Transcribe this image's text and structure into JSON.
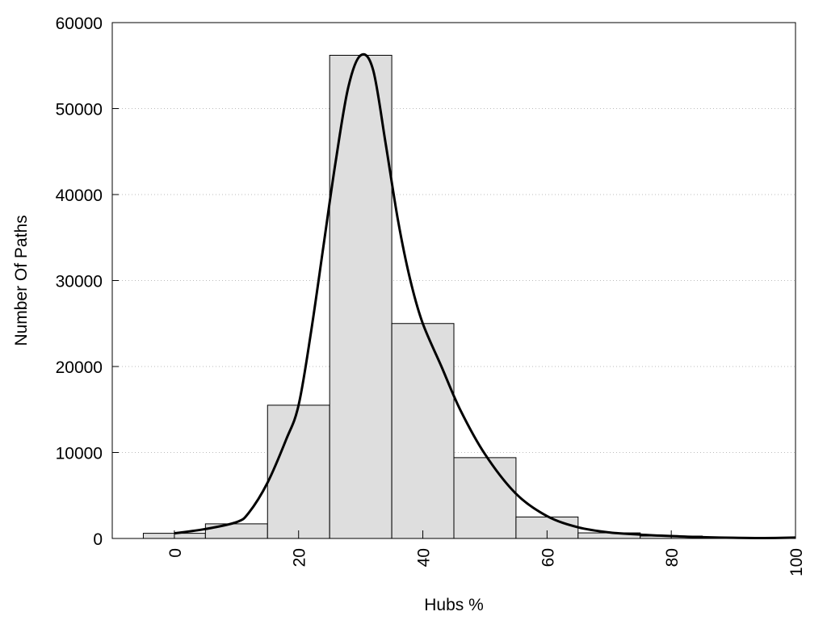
{
  "chart_data": {
    "type": "bar",
    "xlabel": "Hubs %",
    "ylabel": "Number Of Paths",
    "xlim": [
      -10,
      100
    ],
    "ylim": [
      0,
      60000
    ],
    "x_ticks": [
      0,
      20,
      40,
      60,
      80,
      100
    ],
    "y_ticks": [
      0,
      10000,
      20000,
      30000,
      40000,
      50000,
      60000
    ],
    "grid": "horizontal-dotted",
    "bar_width": 10,
    "bars": [
      {
        "x": 0,
        "value": 600
      },
      {
        "x": 10,
        "value": 1700
      },
      {
        "x": 20,
        "value": 15500
      },
      {
        "x": 30,
        "value": 56200
      },
      {
        "x": 40,
        "value": 25000
      },
      {
        "x": 50,
        "value": 9400
      },
      {
        "x": 60,
        "value": 2500
      },
      {
        "x": 70,
        "value": 650
      },
      {
        "x": 80,
        "value": 280
      },
      {
        "x": 90,
        "value": 80
      },
      {
        "x": 100,
        "value": 30
      }
    ],
    "curve": [
      [
        0,
        600
      ],
      [
        5,
        1100
      ],
      [
        10,
        1900
      ],
      [
        12,
        3000
      ],
      [
        15,
        6500
      ],
      [
        18,
        11500
      ],
      [
        20,
        15500
      ],
      [
        22,
        24000
      ],
      [
        24,
        34000
      ],
      [
        26,
        44000
      ],
      [
        28,
        52500
      ],
      [
        30,
        56200
      ],
      [
        32,
        54500
      ],
      [
        34,
        46000
      ],
      [
        36,
        37000
      ],
      [
        38,
        30000
      ],
      [
        40,
        25000
      ],
      [
        43,
        20000
      ],
      [
        46,
        15000
      ],
      [
        50,
        9800
      ],
      [
        55,
        5200
      ],
      [
        60,
        2600
      ],
      [
        65,
        1300
      ],
      [
        70,
        700
      ],
      [
        75,
        450
      ],
      [
        80,
        280
      ],
      [
        85,
        150
      ],
      [
        90,
        80
      ],
      [
        95,
        50
      ],
      [
        100,
        100
      ]
    ],
    "colors": {
      "bar_fill": "#dedede",
      "bar_stroke": "#000000",
      "curve": "#000000",
      "grid": "#bbbbbb"
    }
  }
}
